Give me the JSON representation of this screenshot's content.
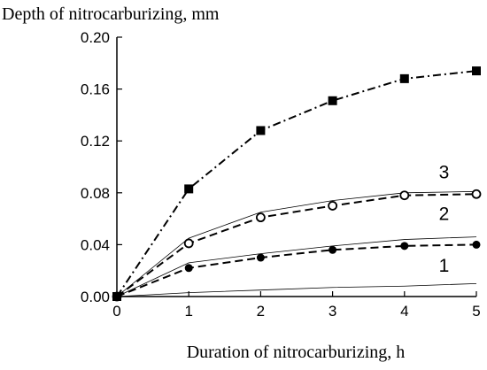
{
  "chart_data": {
    "type": "line",
    "ylabel": "Depth of nitrocarburizing, mm",
    "xlabel": "Duration of nitrocarburizing, h",
    "xlim": [
      0,
      5
    ],
    "ylim": [
      0,
      0.2
    ],
    "x_ticks": [
      "0",
      "1",
      "2",
      "3",
      "4",
      "5"
    ],
    "y_ticks": [
      "0.00",
      "0.04",
      "0.08",
      "0.12",
      "0.16",
      "0.20"
    ],
    "x_values": [
      0,
      1,
      2,
      3,
      4,
      5
    ],
    "grid": false,
    "series": [
      {
        "marker": "square-filled",
        "line": "dash-dot",
        "values": [
          0,
          0.083,
          0.128,
          0.151,
          0.168,
          0.174
        ]
      },
      {
        "marker": "circle-open",
        "line": "dashed",
        "values": [
          0,
          0.041,
          0.061,
          0.07,
          0.078,
          0.079
        ]
      },
      {
        "marker": "none",
        "line": "thin",
        "values": [
          0,
          0.045,
          0.065,
          0.074,
          0.08,
          0.081
        ]
      },
      {
        "marker": "circle-filled",
        "line": "dashed",
        "values": [
          0,
          0.022,
          0.03,
          0.036,
          0.039,
          0.04
        ]
      },
      {
        "marker": "none",
        "line": "thin",
        "values": [
          0,
          0.026,
          0.033,
          0.039,
          0.044,
          0.046
        ]
      },
      {
        "marker": "none",
        "line": "thin",
        "values": [
          0,
          0.003,
          0.005,
          0.007,
          0.008,
          0.01
        ]
      }
    ],
    "curve_labels": [
      {
        "text": "3",
        "x": 4.55,
        "y": 0.091
      },
      {
        "text": "2",
        "x": 4.55,
        "y": 0.059
      },
      {
        "text": "1",
        "x": 4.55,
        "y": 0.019
      }
    ]
  }
}
